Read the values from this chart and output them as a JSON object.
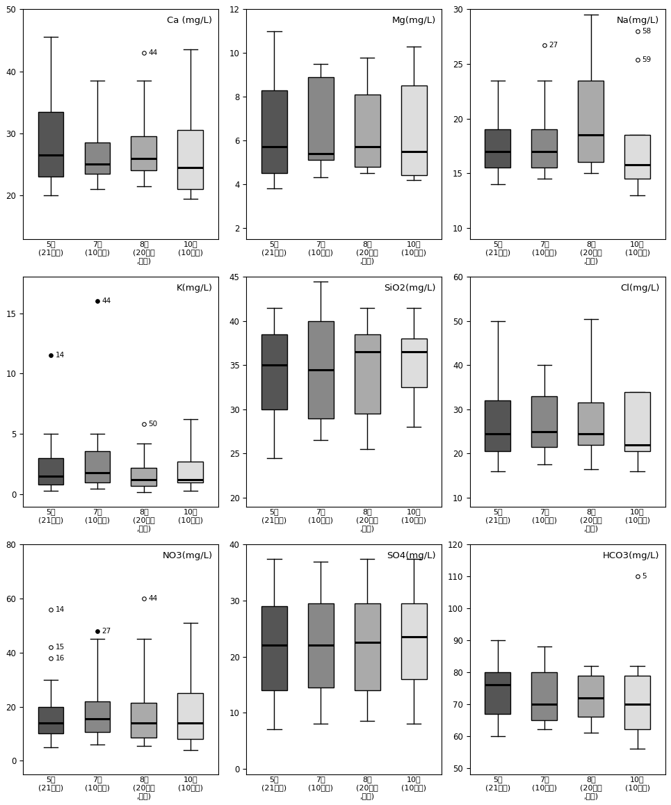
{
  "panels": [
    {
      "title": "Ca (mg/L)",
      "ylim": [
        13,
        50
      ],
      "yticks": [
        20,
        30,
        40,
        50
      ],
      "boxes": [
        {
          "whislo": 20.0,
          "q1": 23.0,
          "med": 26.5,
          "q3": 33.5,
          "whishi": 45.5,
          "fliers": [],
          "color": "#555555"
        },
        {
          "whislo": 21.0,
          "q1": 23.5,
          "med": 25.0,
          "q3": 28.5,
          "whishi": 38.5,
          "fliers": [],
          "color": "#888888"
        },
        {
          "whislo": 21.5,
          "q1": 24.0,
          "med": 26.0,
          "q3": 29.5,
          "whishi": 38.5,
          "fliers": [
            {
              "y": 43.0,
              "label": "44",
              "filled": false
            }
          ],
          "color": "#aaaaaa"
        },
        {
          "whislo": 19.5,
          "q1": 21.0,
          "med": 24.5,
          "q3": 30.5,
          "whishi": 43.5,
          "fliers": [],
          "color": "#dddddd"
        }
      ]
    },
    {
      "title": "Mg(mg/L)",
      "ylim": [
        1.5,
        12
      ],
      "yticks": [
        2,
        4,
        6,
        8,
        10,
        12
      ],
      "boxes": [
        {
          "whislo": 3.8,
          "q1": 4.5,
          "med": 5.7,
          "q3": 8.3,
          "whishi": 11.0,
          "fliers": [],
          "color": "#555555"
        },
        {
          "whislo": 4.3,
          "q1": 5.1,
          "med": 5.4,
          "q3": 8.9,
          "whishi": 9.5,
          "fliers": [],
          "color": "#888888"
        },
        {
          "whislo": 4.5,
          "q1": 4.8,
          "med": 5.7,
          "q3": 8.1,
          "whishi": 9.8,
          "fliers": [],
          "color": "#aaaaaa"
        },
        {
          "whislo": 4.2,
          "q1": 4.4,
          "med": 5.5,
          "q3": 8.5,
          "whishi": 10.3,
          "fliers": [],
          "color": "#dddddd"
        }
      ]
    },
    {
      "title": "Na(mg/L)",
      "ylim": [
        9,
        30
      ],
      "yticks": [
        10,
        15,
        20,
        25,
        30
      ],
      "boxes": [
        {
          "whislo": 14.0,
          "q1": 15.5,
          "med": 17.0,
          "q3": 19.0,
          "whishi": 23.5,
          "fliers": [],
          "color": "#555555"
        },
        {
          "whislo": 14.5,
          "q1": 15.5,
          "med": 17.0,
          "q3": 19.0,
          "whishi": 23.5,
          "fliers": [
            {
              "y": 26.7,
              "label": "27",
              "filled": false
            }
          ],
          "color": "#888888"
        },
        {
          "whislo": 15.0,
          "q1": 16.0,
          "med": 18.5,
          "q3": 23.5,
          "whishi": 29.5,
          "fliers": [],
          "color": "#aaaaaa"
        },
        {
          "whislo": 13.0,
          "q1": 14.5,
          "med": 15.8,
          "q3": 18.5,
          "whishi": 18.5,
          "fliers": [
            {
              "y": 28.0,
              "label": "58",
              "filled": false
            },
            {
              "y": 25.4,
              "label": "59",
              "filled": false
            }
          ],
          "color": "#dddddd"
        }
      ]
    },
    {
      "title": "K(mg/L)",
      "ylim": [
        -1,
        18
      ],
      "yticks": [
        0,
        5,
        10,
        15
      ],
      "boxes": [
        {
          "whislo": 0.3,
          "q1": 0.8,
          "med": 1.5,
          "q3": 3.0,
          "whishi": 5.0,
          "fliers": [
            {
              "y": 11.5,
              "label": "14",
              "filled": true
            }
          ],
          "color": "#555555"
        },
        {
          "whislo": 0.5,
          "q1": 1.0,
          "med": 1.8,
          "q3": 3.6,
          "whishi": 5.0,
          "fliers": [
            {
              "y": 16.0,
              "label": "44",
              "filled": true
            }
          ],
          "color": "#888888"
        },
        {
          "whislo": 0.2,
          "q1": 0.7,
          "med": 1.2,
          "q3": 2.2,
          "whishi": 4.2,
          "fliers": [
            {
              "y": 5.8,
              "label": "50",
              "filled": false
            }
          ],
          "color": "#aaaaaa"
        },
        {
          "whislo": 0.3,
          "q1": 1.0,
          "med": 1.2,
          "q3": 2.7,
          "whishi": 6.2,
          "fliers": [],
          "color": "#dddddd"
        }
      ]
    },
    {
      "title": "SiO2(mg/L)",
      "ylim": [
        19,
        45
      ],
      "yticks": [
        20,
        25,
        30,
        35,
        40,
        45
      ],
      "boxes": [
        {
          "whislo": 24.5,
          "q1": 30.0,
          "med": 35.0,
          "q3": 38.5,
          "whishi": 41.5,
          "fliers": [],
          "color": "#555555"
        },
        {
          "whislo": 26.5,
          "q1": 29.0,
          "med": 34.5,
          "q3": 40.0,
          "whishi": 44.5,
          "fliers": [],
          "color": "#888888"
        },
        {
          "whislo": 25.5,
          "q1": 29.5,
          "med": 36.5,
          "q3": 38.5,
          "whishi": 41.5,
          "fliers": [],
          "color": "#aaaaaa"
        },
        {
          "whislo": 28.0,
          "q1": 32.5,
          "med": 36.5,
          "q3": 38.0,
          "whishi": 41.5,
          "fliers": [],
          "color": "#dddddd"
        }
      ]
    },
    {
      "title": "Cl(mg/L)",
      "ylim": [
        8,
        60
      ],
      "yticks": [
        10,
        20,
        30,
        40,
        50,
        60
      ],
      "boxes": [
        {
          "whislo": 16.0,
          "q1": 20.5,
          "med": 24.5,
          "q3": 32.0,
          "whishi": 50.0,
          "fliers": [],
          "color": "#555555"
        },
        {
          "whislo": 17.5,
          "q1": 21.5,
          "med": 25.0,
          "q3": 33.0,
          "whishi": 40.0,
          "fliers": [],
          "color": "#888888"
        },
        {
          "whislo": 16.5,
          "q1": 22.0,
          "med": 24.5,
          "q3": 31.5,
          "whishi": 50.5,
          "fliers": [],
          "color": "#aaaaaa"
        },
        {
          "whislo": 16.0,
          "q1": 20.5,
          "med": 22.0,
          "q3": 34.0,
          "whishi": 34.0,
          "fliers": [],
          "color": "#dddddd"
        }
      ]
    },
    {
      "title": "NO3(mg/L)",
      "ylim": [
        -5,
        80
      ],
      "yticks": [
        0,
        20,
        40,
        60,
        80
      ],
      "boxes": [
        {
          "whislo": 5.0,
          "q1": 10.0,
          "med": 14.0,
          "q3": 20.0,
          "whishi": 30.0,
          "fliers": [
            {
              "y": 56.0,
              "label": "14",
              "filled": false
            },
            {
              "y": 42.0,
              "label": "15",
              "filled": false
            },
            {
              "y": 38.0,
              "label": "16",
              "filled": false
            }
          ],
          "color": "#555555"
        },
        {
          "whislo": 6.0,
          "q1": 10.5,
          "med": 15.5,
          "q3": 22.0,
          "whishi": 45.0,
          "fliers": [
            {
              "y": 48.0,
              "label": "27",
              "filled": true
            }
          ],
          "color": "#888888"
        },
        {
          "whislo": 5.5,
          "q1": 8.5,
          "med": 14.0,
          "q3": 21.5,
          "whishi": 45.0,
          "fliers": [
            {
              "y": 60.0,
              "label": "44",
              "filled": false
            }
          ],
          "color": "#aaaaaa"
        },
        {
          "whislo": 4.0,
          "q1": 8.0,
          "med": 14.0,
          "q3": 25.0,
          "whishi": 51.0,
          "fliers": [],
          "color": "#dddddd"
        }
      ]
    },
    {
      "title": "SO4(mg/L)",
      "ylim": [
        -1,
        40
      ],
      "yticks": [
        0,
        10,
        20,
        30,
        40
      ],
      "boxes": [
        {
          "whislo": 7.0,
          "q1": 14.0,
          "med": 22.0,
          "q3": 29.0,
          "whishi": 37.5,
          "fliers": [],
          "color": "#555555"
        },
        {
          "whislo": 8.0,
          "q1": 14.5,
          "med": 22.0,
          "q3": 29.5,
          "whishi": 37.0,
          "fliers": [],
          "color": "#888888"
        },
        {
          "whislo": 8.5,
          "q1": 14.0,
          "med": 22.5,
          "q3": 29.5,
          "whishi": 37.5,
          "fliers": [],
          "color": "#aaaaaa"
        },
        {
          "whislo": 8.0,
          "q1": 16.0,
          "med": 23.5,
          "q3": 29.5,
          "whishi": 37.5,
          "fliers": [],
          "color": "#dddddd"
        }
      ]
    },
    {
      "title": "HCO3(mg/L)",
      "ylim": [
        48,
        120
      ],
      "yticks": [
        50,
        60,
        70,
        80,
        90,
        100,
        110,
        120
      ],
      "boxes": [
        {
          "whislo": 60.0,
          "q1": 67.0,
          "med": 76.0,
          "q3": 80.0,
          "whishi": 90.0,
          "fliers": [],
          "color": "#555555"
        },
        {
          "whislo": 62.0,
          "q1": 65.0,
          "med": 70.0,
          "q3": 80.0,
          "whishi": 88.0,
          "fliers": [],
          "color": "#888888"
        },
        {
          "whislo": 61.0,
          "q1": 66.0,
          "med": 72.0,
          "q3": 79.0,
          "whishi": 82.0,
          "fliers": [],
          "color": "#aaaaaa"
        },
        {
          "whislo": 56.0,
          "q1": 62.0,
          "med": 70.0,
          "q3": 79.0,
          "whishi": 82.0,
          "fliers": [
            {
              "y": 110.0,
              "label": "5",
              "filled": false
            }
          ],
          "color": "#dddddd"
        }
      ]
    }
  ],
  "xlabels": [
    "5월\n(21개소)",
    "7월\n(10개소)",
    "8월\n(20개소\n,우기)",
    "10월\n(10개소)"
  ],
  "box_width": 0.55,
  "linewidth": 1.0,
  "median_linewidth": 2.2
}
